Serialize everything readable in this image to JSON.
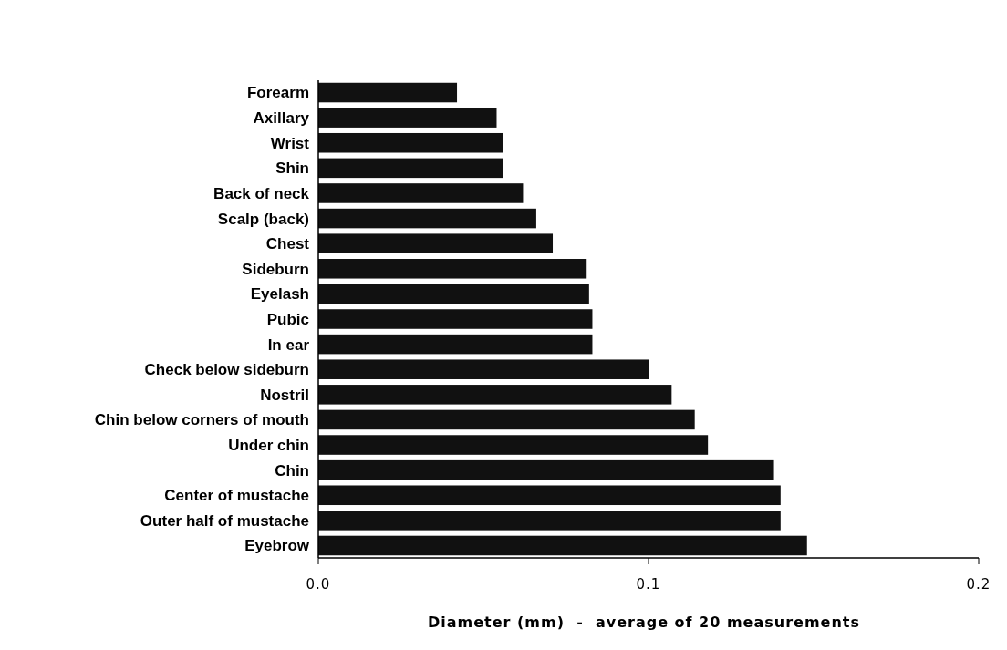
{
  "chart_data": {
    "type": "bar",
    "orientation": "horizontal",
    "xlabel": "Diameter (mm)  -  average of 20 measurements",
    "categories": [
      "Forearm",
      "Axillary",
      "Wrist",
      "Shin",
      "Back of neck",
      "Scalp (back)",
      "Chest",
      "Sideburn",
      "Eyelash",
      "Pubic",
      "In ear",
      "Check below sideburn",
      "Nostril",
      "Chin below corners of mouth",
      "Under chin",
      "Chin",
      "Center of mustache",
      "Outer half of mustache",
      "Eyebrow"
    ],
    "values": [
      0.042,
      0.054,
      0.056,
      0.056,
      0.062,
      0.066,
      0.071,
      0.081,
      0.082,
      0.083,
      0.083,
      0.1,
      0.107,
      0.114,
      0.118,
      0.138,
      0.14,
      0.14,
      0.148
    ],
    "color": "#111111",
    "xlim": [
      0,
      0.2
    ],
    "xticks": [
      {
        "value": 0,
        "label": "0.0"
      },
      {
        "value": 0.1,
        "label": "0.1"
      },
      {
        "value": 0.2,
        "label": "0.2"
      }
    ],
    "grid": false
  }
}
